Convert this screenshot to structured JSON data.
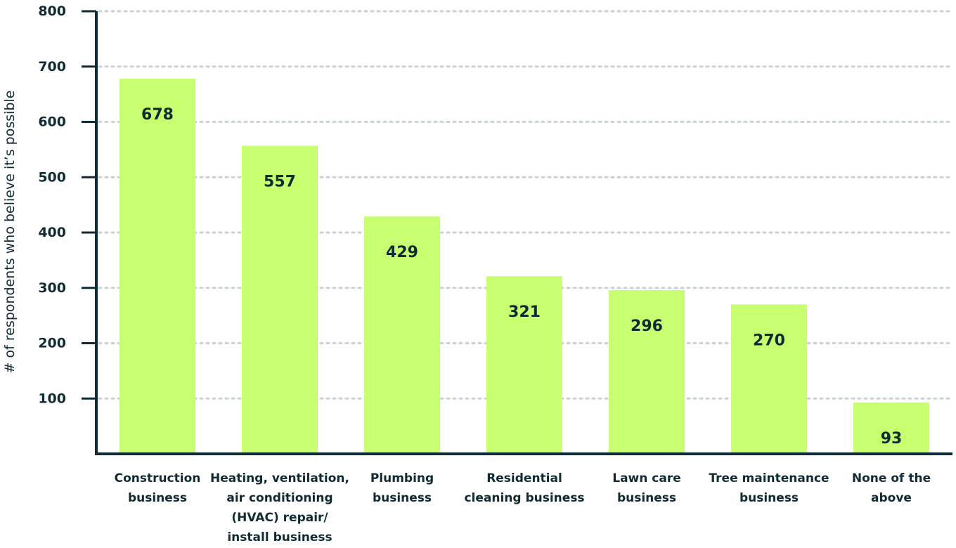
{
  "chart_data": {
    "type": "bar",
    "title": "",
    "xlabel": "",
    "ylabel": "# of respondents who believe it’s possible",
    "ylim": [
      0,
      800
    ],
    "yticks": [
      100,
      200,
      300,
      400,
      500,
      600,
      700,
      800
    ],
    "grid": true,
    "categories": [
      [
        "Construction",
        "business"
      ],
      [
        "Heating, ventilation,",
        "air conditioning",
        "(HVAC) repair/",
        "install business"
      ],
      [
        "Plumbing",
        "business"
      ],
      [
        "Residential",
        "cleaning business"
      ],
      [
        "Lawn care",
        "business"
      ],
      [
        "Tree maintenance",
        "business"
      ],
      [
        "None of the",
        "above"
      ]
    ],
    "values": [
      678,
      557,
      429,
      321,
      296,
      270,
      93
    ],
    "colors": {
      "bar": "#c8ff70",
      "axis": "#0f2b33",
      "text": "#0f2b33",
      "grid": "#c9d2d6"
    }
  }
}
